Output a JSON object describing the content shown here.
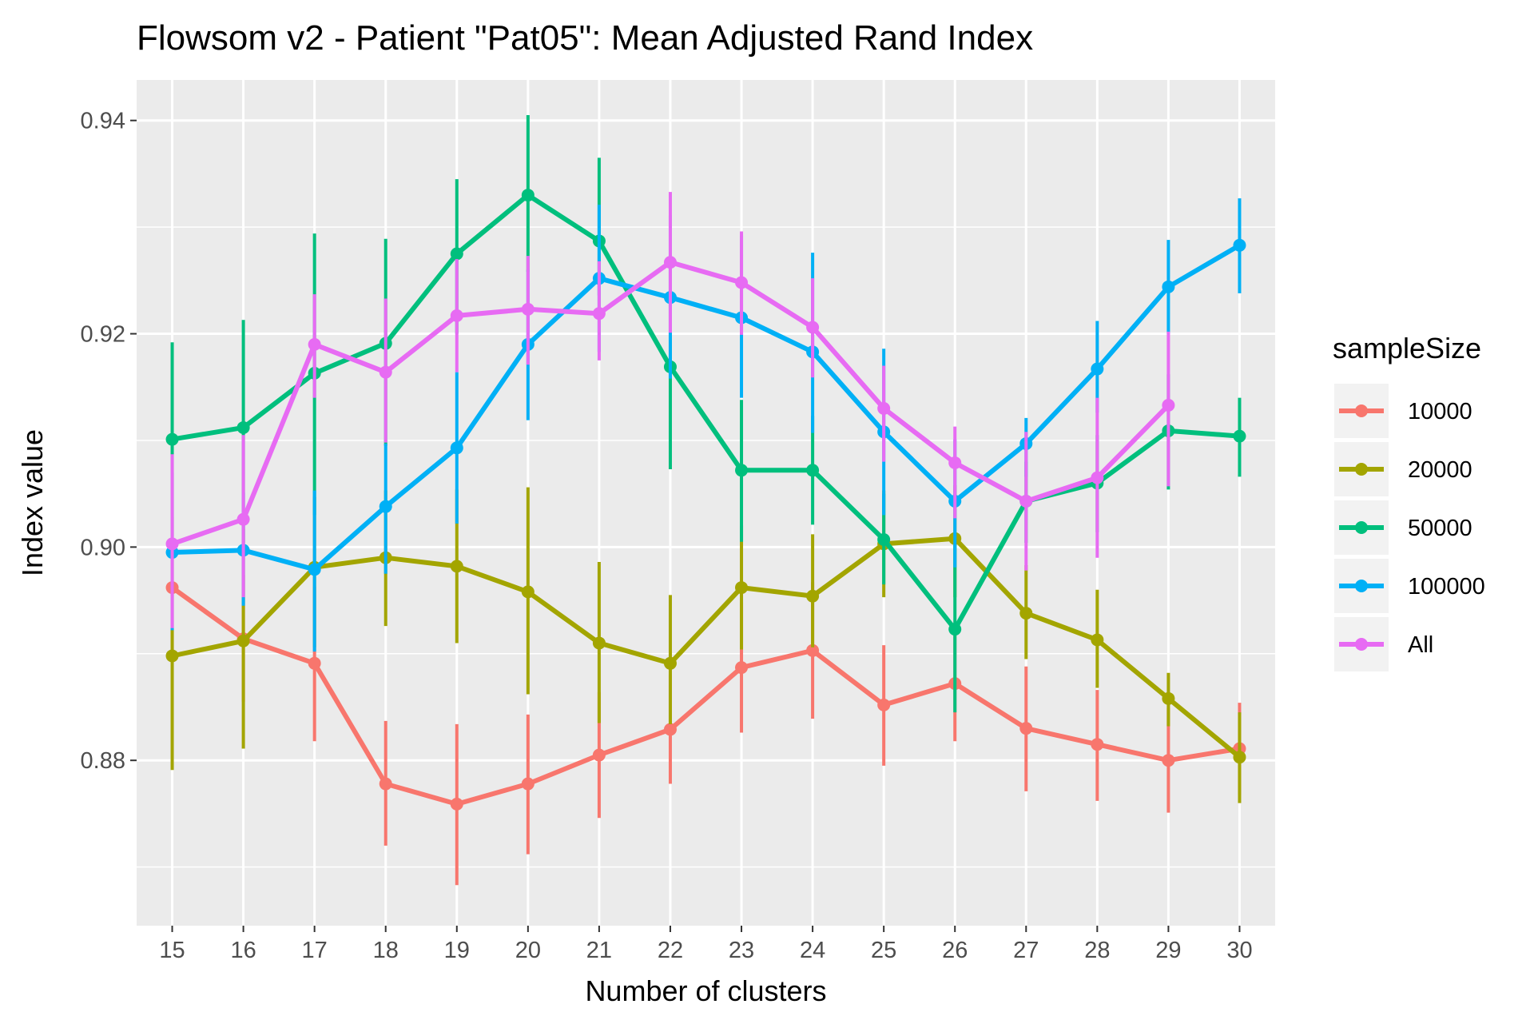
{
  "chart_data": {
    "type": "line",
    "title": "Flowsom v2 - Patient \"Pat05\": Mean Adjusted Rand Index",
    "xlabel": "Number of clusters",
    "ylabel": "Index value",
    "categories": [
      "15",
      "16",
      "17",
      "18",
      "19",
      "20",
      "21",
      "22",
      "23",
      "24",
      "25",
      "26",
      "27",
      "28",
      "29",
      "30"
    ],
    "ylim": [
      0.8645,
      0.9438
    ],
    "yticks": [
      0.88,
      0.9,
      0.92,
      0.94
    ],
    "ytick_labels": [
      "0.88",
      "0.90",
      "0.92",
      "0.94"
    ],
    "grid": true,
    "error_bars": true,
    "legend": {
      "title": "sampleSize",
      "position": "right"
    },
    "series": [
      {
        "name": "10000",
        "color": "#F8766D",
        "values": [
          0.8962,
          0.8914,
          0.8891,
          0.8778,
          0.8759,
          0.8778,
          0.8805,
          0.8829,
          0.8887,
          0.8903,
          0.8852,
          0.8872,
          0.883,
          0.8815,
          0.88,
          0.8811
        ],
        "lower": [
          0.8898,
          0.8855,
          0.8818,
          0.872,
          0.8683,
          0.8712,
          0.8746,
          0.8778,
          0.8826,
          0.8839,
          0.8795,
          0.8818,
          0.8771,
          0.8762,
          0.8751,
          0.8768
        ],
        "upper": [
          0.9028,
          0.8974,
          0.8963,
          0.8837,
          0.8834,
          0.8843,
          0.8864,
          0.888,
          0.8948,
          0.8967,
          0.8908,
          0.8924,
          0.8888,
          0.8866,
          0.8849,
          0.8854
        ]
      },
      {
        "name": "20000",
        "color": "#A3A500",
        "values": [
          0.8898,
          0.8912,
          0.8981,
          0.899,
          0.8982,
          0.8958,
          0.891,
          0.8891,
          0.8962,
          0.8954,
          0.9003,
          0.9008,
          0.8938,
          0.8913,
          0.8858,
          0.8803
        ],
        "lower": [
          0.8791,
          0.8811,
          0.8906,
          0.8926,
          0.891,
          0.8862,
          0.8835,
          0.8834,
          0.8904,
          0.8906,
          0.8953,
          0.8953,
          0.8895,
          0.8868,
          0.8832,
          0.876
        ],
        "upper": [
          0.9006,
          0.9017,
          0.9047,
          0.9053,
          0.9054,
          0.9056,
          0.8986,
          0.8955,
          0.902,
          0.9012,
          0.9053,
          0.9058,
          0.8983,
          0.896,
          0.8882,
          0.8845
        ]
      },
      {
        "name": "50000",
        "color": "#00BF7D",
        "values": [
          0.9101,
          0.9112,
          0.9163,
          0.9191,
          0.9275,
          0.933,
          0.9287,
          0.9169,
          0.9072,
          0.9072,
          0.9007,
          0.8923,
          0.9043,
          0.906,
          0.9109,
          0.9104
        ],
        "lower": [
          0.901,
          0.9004,
          0.903,
          0.9095,
          0.92,
          0.9258,
          0.9236,
          0.9073,
          0.9005,
          0.9021,
          0.8965,
          0.8845,
          0.9004,
          0.9014,
          0.9054,
          0.9066
        ],
        "upper": [
          0.9192,
          0.9213,
          0.9294,
          0.9289,
          0.9345,
          0.9405,
          0.9365,
          0.9266,
          0.9138,
          0.9123,
          0.905,
          0.9002,
          0.908,
          0.9105,
          0.9162,
          0.914
        ]
      },
      {
        "name": "100000",
        "color": "#00B0F6",
        "values": [
          0.8995,
          0.8997,
          0.8979,
          0.9038,
          0.9093,
          0.919,
          0.9252,
          0.9234,
          0.9215,
          0.9183,
          0.9108,
          0.9043,
          0.9097,
          0.9167,
          0.9244,
          0.9283
        ],
        "lower": [
          0.8922,
          0.8945,
          0.8902,
          0.8975,
          0.9022,
          0.9119,
          0.9183,
          0.9158,
          0.914,
          0.9107,
          0.903,
          0.8981,
          0.9066,
          0.9126,
          0.92,
          0.9238
        ],
        "upper": [
          0.907,
          0.9051,
          0.9053,
          0.9097,
          0.9164,
          0.926,
          0.9321,
          0.9311,
          0.9292,
          0.9276,
          0.9186,
          0.9101,
          0.9121,
          0.9212,
          0.9288,
          0.9327
        ]
      },
      {
        "name": "All",
        "color": "#E76BF3",
        "values": [
          0.9003,
          0.9026,
          0.919,
          0.9164,
          0.9217,
          0.9223,
          0.9219,
          0.9267,
          0.9248,
          0.9206,
          0.913,
          0.9079,
          0.9043,
          0.9065,
          0.9133,
          null
        ],
        "lower": [
          0.8924,
          0.8953,
          0.914,
          0.9098,
          0.9164,
          0.9171,
          0.9175,
          0.9201,
          0.9199,
          0.9159,
          0.908,
          0.9027,
          0.8978,
          0.899,
          0.9057,
          null
        ],
        "upper": [
          0.9087,
          0.9105,
          0.9237,
          0.9233,
          0.927,
          0.9273,
          0.9268,
          0.9333,
          0.9296,
          0.9252,
          0.917,
          0.9113,
          0.9108,
          0.914,
          0.9202,
          null
        ]
      }
    ]
  }
}
